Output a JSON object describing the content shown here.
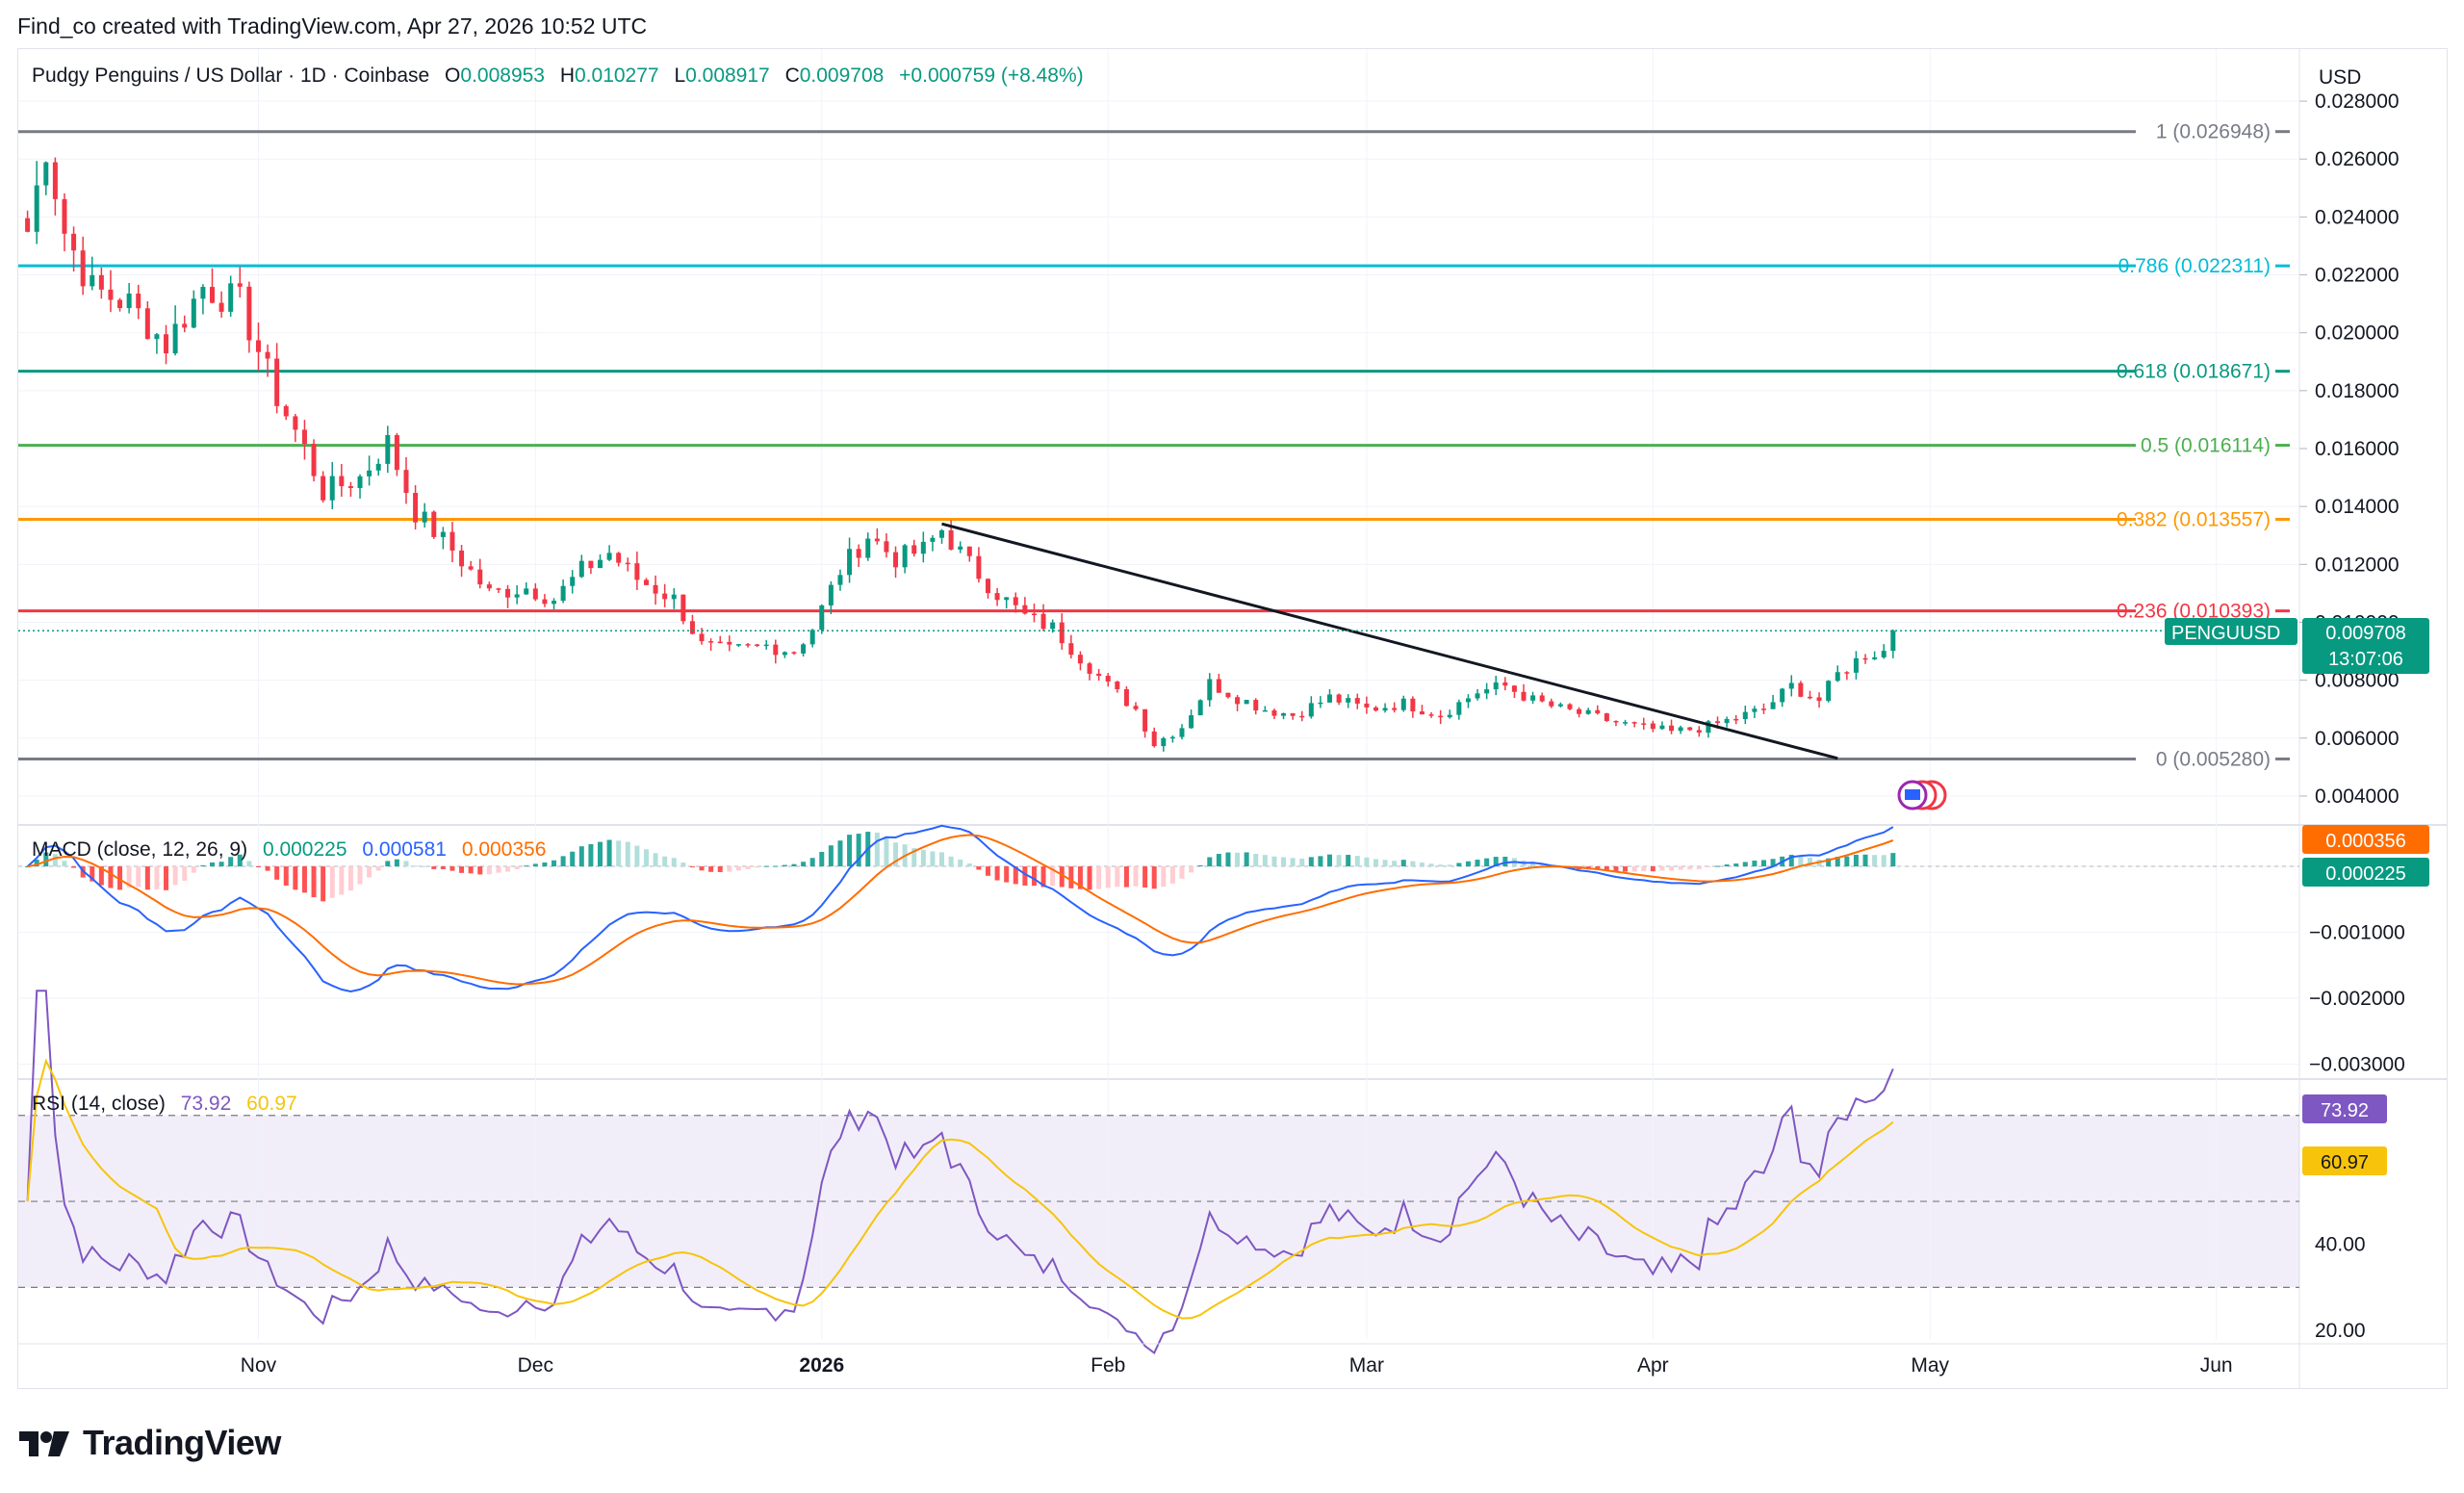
{
  "header": {
    "created_by": "Find_co created with TradingView.com, Apr 27, 2026 10:52 UTC"
  },
  "symbol": {
    "title": "Pudgy Penguins / US Dollar · 1D · Coinbase",
    "o_label": "O",
    "o_value": "0.008953",
    "h_label": "H",
    "h_value": "0.010277",
    "l_label": "L",
    "l_value": "0.008917",
    "c_label": "C",
    "c_value": "0.009708",
    "change": "+0.000759 (+8.48%)"
  },
  "currency": "USD",
  "colors": {
    "up": "#089981",
    "down": "#f23645",
    "accent": "#2962ff",
    "signal": "#ff6d00",
    "rsi": "#7e57c2",
    "rsi_ma": "#f7c40b"
  },
  "price_axis": {
    "ticks": [
      "0.028000",
      "0.026000",
      "0.024000",
      "0.022000",
      "0.020000",
      "0.018000",
      "0.016000",
      "0.014000",
      "0.012000",
      "0.010000",
      "0.008000",
      "0.006000",
      "0.004000"
    ]
  },
  "macd_axis": {
    "ticks": [
      "0.000000",
      "−0.001000",
      "−0.002000",
      "−0.003000"
    ]
  },
  "rsi_axis": {
    "ticks": [
      "40.00",
      "20.00"
    ]
  },
  "time_axis": {
    "labels": [
      "Nov",
      "Dec",
      "2026",
      "Feb",
      "Mar",
      "Apr",
      "May",
      "Jun"
    ]
  },
  "price_tag": {
    "symbol": "PENGUUSD",
    "price": "0.009708",
    "countdown": "13:07:06"
  },
  "macd": {
    "label": "MACD (close, 12, 26, 9)",
    "hist": "0.000225",
    "macd": "0.000581",
    "signal": "0.000356"
  },
  "rsi": {
    "label": "RSI (14, close)",
    "value": "73.92",
    "ma": "60.97"
  },
  "footer": {
    "brand": "TradingView"
  },
  "chart_data": {
    "type": "candlestick",
    "title": "Pudgy Penguins / US Dollar · 1D · Coinbase",
    "y_range": [
      0.0032,
      0.0288
    ],
    "fib_levels": [
      {
        "ratio": 1,
        "price": 0.026948,
        "label": "1 (0.026948)",
        "color": "#787b86"
      },
      {
        "ratio": 0.786,
        "price": 0.022311,
        "label": "0.786 (0.022311)",
        "color": "#00bcd4"
      },
      {
        "ratio": 0.618,
        "price": 0.018671,
        "label": "0.618 (0.018671)",
        "color": "#089981"
      },
      {
        "ratio": 0.5,
        "price": 0.016114,
        "label": "0.5 (0.016114)",
        "color": "#4caf50"
      },
      {
        "ratio": 0.382,
        "price": 0.013557,
        "label": "0.382 (0.013557)",
        "color": "#ff9800"
      },
      {
        "ratio": 0.236,
        "price": 0.010393,
        "label": "0.236 (0.010393)",
        "color": "#f23645"
      },
      {
        "ratio": 0,
        "price": 0.00528,
        "label": "0 (0.005280)",
        "color": "#787b86"
      }
    ],
    "trendline": {
      "from": {
        "date": "2026-01-14",
        "price": 0.0134
      },
      "to": {
        "date": "2026-04-21",
        "price": 0.0053
      }
    },
    "close_series": [
      [
        "2025-10-07",
        0.0235
      ],
      [
        "2025-10-09",
        0.0265
      ],
      [
        "2025-10-11",
        0.0235
      ],
      [
        "2025-10-14",
        0.0215
      ],
      [
        "2025-10-18",
        0.021
      ],
      [
        "2025-10-22",
        0.0196
      ],
      [
        "2025-10-26",
        0.0216
      ],
      [
        "2025-10-30",
        0.021
      ],
      [
        "2025-11-03",
        0.0178
      ],
      [
        "2025-11-06",
        0.016
      ],
      [
        "2025-11-08",
        0.0145
      ],
      [
        "2025-11-12",
        0.015
      ],
      [
        "2025-11-15",
        0.0162
      ],
      [
        "2025-11-18",
        0.0138
      ],
      [
        "2025-11-22",
        0.0125
      ],
      [
        "2025-11-26",
        0.011
      ],
      [
        "2025-11-30",
        0.0112
      ],
      [
        "2025-12-03",
        0.0108
      ],
      [
        "2025-12-06",
        0.0118
      ],
      [
        "2025-12-09",
        0.0124
      ],
      [
        "2025-12-12",
        0.0115
      ],
      [
        "2025-12-16",
        0.0108
      ],
      [
        "2025-12-19",
        0.0092
      ],
      [
        "2025-12-22",
        0.009
      ],
      [
        "2025-12-26",
        0.0092
      ],
      [
        "2025-12-29",
        0.009
      ],
      [
        "2025-12-31",
        0.0098
      ],
      [
        "2026-01-03",
        0.0118
      ],
      [
        "2026-01-06",
        0.013
      ],
      [
        "2026-01-09",
        0.0122
      ],
      [
        "2026-01-12",
        0.0125
      ],
      [
        "2026-01-14",
        0.0132
      ],
      [
        "2026-01-17",
        0.012
      ],
      [
        "2026-01-20",
        0.011
      ],
      [
        "2026-01-23",
        0.0102
      ],
      [
        "2026-01-26",
        0.0098
      ],
      [
        "2026-01-29",
        0.0088
      ],
      [
        "2026-02-01",
        0.0078
      ],
      [
        "2026-02-04",
        0.007
      ],
      [
        "2026-02-06",
        0.0058
      ],
      [
        "2026-02-09",
        0.0064
      ],
      [
        "2026-02-12",
        0.0079
      ],
      [
        "2026-02-15",
        0.0074
      ],
      [
        "2026-02-18",
        0.007
      ],
      [
        "2026-02-21",
        0.0068
      ],
      [
        "2026-02-25",
        0.0074
      ],
      [
        "2026-03-01",
        0.007
      ],
      [
        "2026-03-05",
        0.0072
      ],
      [
        "2026-03-09",
        0.0068
      ],
      [
        "2026-03-13",
        0.0076
      ],
      [
        "2026-03-16",
        0.0078
      ],
      [
        "2026-03-19",
        0.0073
      ],
      [
        "2026-03-22",
        0.007
      ],
      [
        "2026-03-26",
        0.0067
      ],
      [
        "2026-03-30",
        0.0064
      ],
      [
        "2026-04-03",
        0.0062
      ],
      [
        "2026-04-07",
        0.0064
      ],
      [
        "2026-04-10",
        0.0067
      ],
      [
        "2026-04-13",
        0.007
      ],
      [
        "2026-04-16",
        0.0078
      ],
      [
        "2026-04-19",
        0.0073
      ],
      [
        "2026-04-21",
        0.0082
      ],
      [
        "2026-04-24",
        0.0089
      ],
      [
        "2026-04-26",
        0.009
      ],
      [
        "2026-04-27",
        0.009708
      ]
    ],
    "macd_series": {
      "y_range": [
        -0.0032,
        0.0006
      ]
    },
    "rsi_series": {
      "y_range": [
        18,
        78
      ],
      "overbought": 70,
      "mid": 50,
      "oversold": 30
    }
  }
}
